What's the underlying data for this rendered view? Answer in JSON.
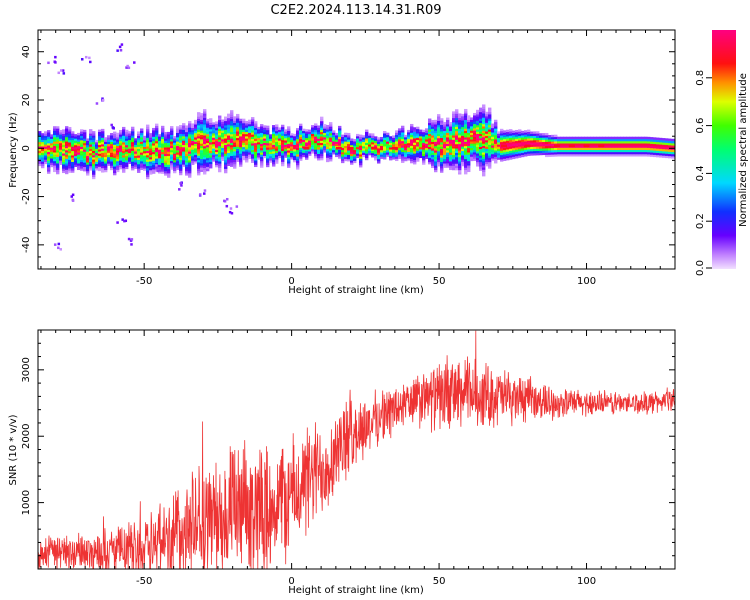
{
  "title": "C2E2.2024.113.14.31.R09",
  "chart_data": [
    {
      "type": "heatmap",
      "xlabel": "Height of straight line (km)",
      "ylabel": "Frequency (Hz)",
      "xlim": [
        -86,
        130
      ],
      "ylim": [
        -50,
        49
      ],
      "xticks": [
        -50,
        0,
        50,
        100
      ],
      "yticks": [
        -40,
        -20,
        0,
        20,
        40
      ],
      "colorbar": {
        "label": "Normalized spectral amplitude",
        "range": [
          0,
          1
        ],
        "ticks": [
          "0.0",
          "0.2",
          "0.4",
          "0.6",
          "0.8"
        ],
        "colormap": "gist_rainbow (violet→blue→cyan→green→yellow→red→magenta)"
      },
      "ridge": {
        "description": "dominant frequency track vs height",
        "x": [
          -86,
          -70,
          -55,
          -40,
          -30,
          -20,
          -10,
          0,
          10,
          20,
          30,
          40,
          50,
          60,
          65,
          70,
          80,
          90,
          100,
          110,
          120,
          130
        ],
        "y": [
          0,
          -2,
          -1,
          -1,
          2,
          3,
          2,
          1,
          3,
          0,
          0,
          1,
          2,
          3,
          5,
          1,
          2,
          1,
          1,
          1,
          1,
          0
        ],
        "spread_hz": [
          6,
          6,
          6,
          7,
          8,
          7,
          6,
          5,
          5,
          4,
          4,
          5,
          7,
          8,
          9,
          5,
          4,
          3,
          3,
          3,
          3,
          3
        ]
      }
    },
    {
      "type": "line",
      "xlabel": "Height of straight line (km)",
      "ylabel": "SNR (10 * v/v)",
      "xlim": [
        -86,
        130
      ],
      "ylim": [
        0,
        3600
      ],
      "xticks": [
        -50,
        0,
        50,
        100
      ],
      "yticks": [
        1000,
        2000,
        3000
      ],
      "series": [
        {
          "color": "#ee3333",
          "envelope_x": [
            -86,
            -70,
            -55,
            -40,
            -30,
            -20,
            -10,
            0,
            10,
            20,
            30,
            40,
            50,
            60,
            70,
            80,
            90,
            100,
            110,
            120,
            130
          ],
          "envelope_mean": [
            250,
            250,
            300,
            500,
            700,
            800,
            900,
            1100,
            1500,
            2000,
            2300,
            2500,
            2600,
            2650,
            2600,
            2550,
            2500,
            2500,
            2500,
            2500,
            2550
          ],
          "envelope_amp": [
            250,
            250,
            350,
            700,
            800,
            900,
            900,
            800,
            700,
            500,
            350,
            350,
            450,
            500,
            400,
            300,
            200,
            180,
            160,
            150,
            150
          ]
        }
      ]
    }
  ]
}
